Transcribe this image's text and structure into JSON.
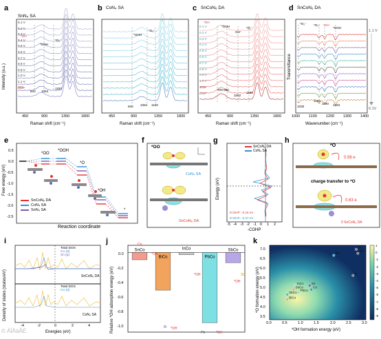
{
  "panels": {
    "a": {
      "letter": "a",
      "title": "SnN₄ SA",
      "potentials": [
        "0.1 V",
        "0.2 V",
        "0.3 V",
        "0.4 V",
        "0.5 V",
        "0.6 V",
        "0.7 V",
        "0.8 V",
        "0.9 V",
        "1.0 V",
        "1.1 V",
        "OCP"
      ],
      "peaks": [
        "*OH",
        "*OOH",
        "*O₂⁻",
        "843",
        "1064",
        "1150",
        "372"
      ],
      "xlabel": "Raman shift (cm⁻¹)",
      "ylabel": "Intensity (a.u.)",
      "xticks": [
        "450",
        "900",
        "1350",
        "1800"
      ]
    },
    "b": {
      "letter": "b",
      "title": "CoN₄ SA",
      "potentials": [
        "0.1 V",
        "0.2 V",
        "0.3 V",
        "0.4 V",
        "0.5 V",
        "0.6 V",
        "0.7 V",
        "0.8 V",
        "0.9 V",
        "1.0 V",
        "1.1 V",
        "OCP"
      ],
      "peaks": [
        "*OOH",
        "*O₂⁻",
        "840",
        "1054",
        "1150"
      ],
      "xlabel": "Raman shift (cm⁻¹)",
      "xticks": [
        "450",
        "900",
        "1350",
        "1800"
      ]
    },
    "c": {
      "letter": "c",
      "title": "SnCoN₆ DA",
      "potentials": [
        "0.1 V",
        "0.2 V",
        "0.3 V",
        "0.4 V",
        "0.5 V",
        "0.6 V",
        "0.7 V",
        "0.8 V",
        "0.9 V",
        "1.0 V",
        "1.1 V",
        "OCP"
      ],
      "peaks": [
        "*OH",
        "*OOH",
        "OH⁻",
        "*O₂⁻",
        "700-850",
        "1062",
        "1150",
        "372"
      ],
      "xlabel": "Raman shift (cm⁻¹)",
      "xticks": [
        "450",
        "900",
        "1350",
        "1800"
      ]
    },
    "d": {
      "letter": "d",
      "title": "SnCoN₆ DA",
      "peaks": [
        "*O₂⁻",
        "*O₂⁻",
        "*OH",
        "*OOH",
        "1030",
        "1165",
        "1190",
        "1243"
      ],
      "top_potential": "1.1 V",
      "bottom_potential": "0.1V",
      "xlabel": "Wavenumber (cm⁻¹)",
      "ylabel": "Transmittance",
      "xticks": [
        "1000",
        "1100",
        "1200",
        "1300",
        "1400"
      ]
    },
    "e": {
      "letter": "e",
      "ylabel": "Free energy (eV)",
      "xlabel": "Reaction coordinate",
      "states": [
        "*OOH",
        "*OO",
        "*O",
        "*OH",
        "*"
      ],
      "legend": [
        "SnCoN₆ DA",
        "CoN₄ SA",
        "SnN₄ SA"
      ],
      "yticks": [
        "0.5",
        "0.0",
        "-0.5",
        "-1.0",
        "-1.5",
        "-2.0",
        "-2.5"
      ]
    },
    "f": {
      "letter": "f",
      "label_top": "*OO",
      "label_mid": "CoN₄ SA",
      "label_bot": "SnCoN₆ DA"
    },
    "g": {
      "letter": "g",
      "legend": [
        "SnCoN₆ DA",
        "CoN₄ SA"
      ],
      "icohp": [
        "ICOHP: -0.16 eV",
        "ICOHP: -0.27 eV"
      ],
      "xlabel": "-COHP",
      "ylabel": "Energy (eV)",
      "xticks": [
        "-5",
        "-4",
        "-3",
        "-2",
        "-1",
        "0",
        "1",
        "2"
      ]
    },
    "h": {
      "letter": "h",
      "label_top": "*O",
      "e1": "0.56 e",
      "mid": "charge transfer to *O",
      "e2": "0.63 e",
      "label_bot": "0 SnCoN₆ DA"
    },
    "i": {
      "letter": "i",
      "legend1": [
        "Total DOS",
        "Co (d)",
        "Sn (p)"
      ],
      "name1": "SnCoN₆ DA",
      "legend2": [
        "Total DOS",
        "Co (d)"
      ],
      "name2": "CoN₄ SA",
      "xlabel": "Energies (eV)",
      "ylabel": "Density of states (states/eV)",
      "xticks": [
        "-4",
        "-2",
        "0",
        "2",
        "4"
      ]
    },
    "j": {
      "letter": "j",
      "ylabel": "Relative *OH adsorption energy (eV)",
      "bars": [
        "SnCo",
        "BiCo",
        "InCo",
        "PbCo",
        "SbCo"
      ],
      "annotations": [
        "Co",
        "*OH",
        "Bi",
        "*OH",
        "*OH",
        "Pb",
        "*OH",
        "Sb",
        "*OH"
      ],
      "yticks": [
        "0.0",
        "-0.2",
        "-0.4",
        "-0.6",
        "-0.8",
        "-1.0"
      ]
    },
    "k": {
      "letter": "k",
      "xlabel": "*OH formation energy (eV)",
      "ylabel": "*O formation energy (eV)",
      "points": [
        "Bi",
        "Pb",
        "Sb",
        "In",
        "SnCo",
        "SbCo",
        "InCo",
        "PbCo",
        "BiCo",
        "Sn",
        "Co"
      ],
      "xticks": [
        "0.0",
        "0.5",
        "1.0",
        "1.5",
        "2.0",
        "2.5",
        "3.0"
      ],
      "yticks": [
        "7.0",
        "6.5",
        "6.0",
        "5.5",
        "5.0",
        "4.5",
        "4.0",
        "3.5"
      ],
      "cbar": [
        "1",
        "0",
        "-1",
        "-2",
        "-3",
        "-4",
        "-5",
        "-6",
        "-7",
        "-8",
        "-9"
      ]
    }
  },
  "chart_data": [
    {
      "type": "bar",
      "panel": "j",
      "categories": [
        "SnCo",
        "BiCo",
        "InCo",
        "PbCo",
        "SbCo"
      ],
      "values": [
        -0.1,
        -0.52,
        -0.03,
        -0.97,
        -0.14
      ],
      "ylabel": "Relative *OH adsorption energy (eV)",
      "ylim": [
        -1.1,
        0.1
      ]
    },
    {
      "type": "scatter",
      "panel": "k",
      "xlabel": "*OH formation energy (eV)",
      "ylabel": "*O formation energy (eV)",
      "xlim": [
        0.0,
        3.0
      ],
      "ylim": [
        3.5,
        7.2
      ],
      "points": [
        {
          "label": "Bi",
          "x": 2.7,
          "y": 7.0
        },
        {
          "label": "Pb",
          "x": 2.75,
          "y": 6.8
        },
        {
          "label": "Sb",
          "x": 2.0,
          "y": 6.7
        },
        {
          "label": "In",
          "x": 2.6,
          "y": 5.7
        },
        {
          "label": "InCo",
          "x": 0.8,
          "y": 5.2
        },
        {
          "label": "SnCo",
          "x": 0.75,
          "y": 5.0
        },
        {
          "label": "PbCo",
          "x": 0.9,
          "y": 4.85
        },
        {
          "label": "SbCo",
          "x": 0.55,
          "y": 4.75
        },
        {
          "label": "BiCo",
          "x": 0.55,
          "y": 4.5
        },
        {
          "label": "Sn",
          "x": 1.25,
          "y": 5.2
        },
        {
          "label": "Co",
          "x": 1.3,
          "y": 5.0
        }
      ]
    }
  ],
  "colors": {
    "red": "#e4322f",
    "blue": "#2f8fd0",
    "purple": "#7b57b0",
    "orange": "#f2a35c",
    "cyan": "#7fe0e4",
    "lavender": "#b9a6e8",
    "salmon": "#f49a8e"
  },
  "watermark": "© ÁÏÄàÅÉ"
}
